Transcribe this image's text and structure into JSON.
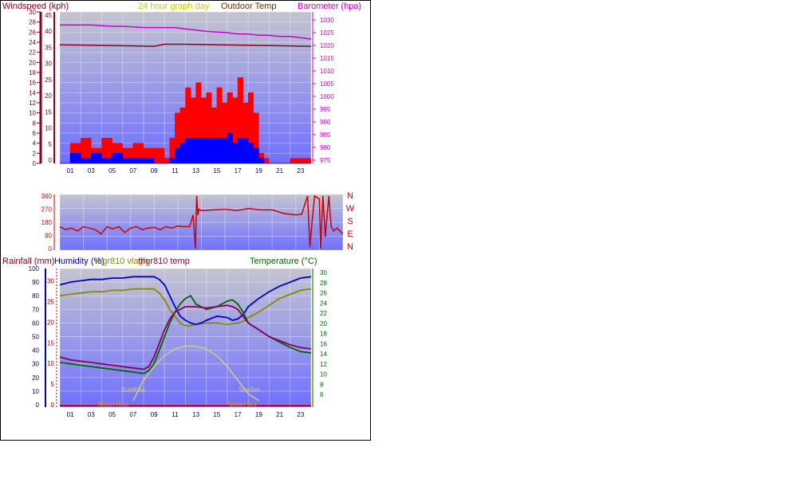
{
  "colors": {
    "windspeed": "#8b0020",
    "gust": "#ff0000",
    "avgwind": "#0000ff",
    "barometer": "#cc00cc",
    "winddir": "#cc0000",
    "header": "#cccc00",
    "rainfall": "#8b0020",
    "humidity": "#0000cc",
    "vlagh": "#888800",
    "temp": "#8b0057",
    "temperature": "#006600",
    "sun": "#cccc88",
    "moon": "#dd9900",
    "plotTop": "#c4c4d0",
    "plotBottom": "#7070ff"
  },
  "header": {
    "windspeed": "Windspeed (kph)",
    "title": "24 hour graph day",
    "outdoor_temp": "Outdoor Temp",
    "barometer": "Barometer (hpa)",
    "rainfall": "Rainfall (mm)",
    "humidity": "Humidity (%)",
    "vlagh": "thgr810 vlagh",
    "temp": "thgr810 temp",
    "temperature": "Temperature (°C)"
  },
  "compass": [
    "N",
    "W",
    "S",
    "E",
    "N"
  ],
  "chart_data": [
    {
      "type": "line",
      "title": "24 hour graph day",
      "xlabel": "",
      "x_ticks": [
        "01",
        "03",
        "05",
        "07",
        "09",
        "11",
        "13",
        "15",
        "17",
        "19",
        "21",
        "23"
      ],
      "left_axis_ticks": [
        "0",
        "2",
        "4",
        "6",
        "8",
        "10",
        "12",
        "14",
        "16",
        "18",
        "20",
        "22",
        "24",
        "26",
        "28",
        "30"
      ],
      "left_axis2_ticks": [
        "0",
        "5",
        "10",
        "15",
        "20",
        "25",
        "30",
        "35",
        "40",
        "45"
      ],
      "right_axis_ticks": [
        "975",
        "980",
        "985",
        "990",
        "995",
        "1000",
        "1005",
        "1010",
        "1015",
        "1020",
        "1025",
        "1030"
      ],
      "ylabel_left": "Windspeed (kph)",
      "ylabel_right": "Barometer (hpa)",
      "ylim_left": [
        0,
        30
      ],
      "ylim_right": [
        975,
        1032
      ],
      "series": [
        {
          "name": "Barometer (hpa)",
          "axis": "right",
          "x": [
            0,
            2,
            3,
            5,
            6,
            8,
            9,
            10,
            11,
            12,
            13,
            14,
            16,
            17,
            18,
            19,
            20,
            21,
            22,
            23,
            24
          ],
          "values": [
            1028,
            1028,
            1028,
            1027.5,
            1027.5,
            1027,
            1027,
            1027,
            1027,
            1026.5,
            1026,
            1025.5,
            1025,
            1024.5,
            1024.5,
            1024,
            1024,
            1023.5,
            1023.5,
            1023,
            1022.5
          ]
        },
        {
          "name": "Outdoor Temp",
          "axis": "left",
          "x": [
            0,
            3,
            6,
            9,
            10,
            12,
            15,
            18,
            21,
            24
          ],
          "values": [
            23.5,
            23.4,
            23.3,
            23.2,
            23.6,
            23.6,
            23.5,
            23.4,
            23.3,
            23.2
          ]
        },
        {
          "name": "Gust",
          "axis": "left",
          "x": [
            0,
            1,
            2,
            3,
            4,
            5,
            6,
            7,
            8,
            9,
            10,
            10.5,
            11,
            11.5,
            12,
            12.5,
            13,
            13.5,
            14,
            14.5,
            15,
            15.5,
            16,
            16.5,
            17,
            17.5,
            18,
            18.5,
            19,
            19.5,
            20,
            21,
            22,
            23,
            24
          ],
          "values": [
            0,
            4,
            5,
            3,
            5,
            4,
            3,
            4,
            3,
            3,
            1,
            5,
            10,
            11,
            15,
            13,
            16,
            13,
            14,
            11,
            15,
            12,
            14,
            13,
            17,
            12,
            14,
            10,
            2,
            1,
            0,
            0,
            1,
            1,
            0
          ]
        },
        {
          "name": "Average",
          "axis": "left",
          "x": [
            0,
            1,
            2,
            3,
            4,
            5,
            6,
            7,
            8,
            9,
            10,
            10.5,
            11,
            11.5,
            12,
            13,
            14,
            15,
            16,
            16.5,
            17,
            18,
            18.5,
            19,
            19.5,
            20,
            21,
            22,
            23,
            24
          ],
          "values": [
            0,
            2,
            1,
            2,
            1,
            2,
            1,
            1,
            1,
            0,
            0,
            1,
            3,
            4,
            5,
            5,
            5,
            5,
            6,
            4,
            5,
            4,
            3,
            1,
            0,
            0,
            0,
            0,
            0,
            0
          ]
        }
      ]
    },
    {
      "type": "line",
      "title": "",
      "left_axis_ticks": [
        "0",
        "90",
        "180",
        "270",
        "360"
      ],
      "ylim": [
        0,
        360
      ],
      "series": [
        {
          "name": "Wind direction",
          "x": [
            0,
            0.5,
            1,
            1.5,
            2,
            2.5,
            3,
            3.5,
            4,
            4.5,
            5,
            5.5,
            6,
            6.5,
            7,
            7.5,
            8,
            8.5,
            9,
            9.5,
            10,
            10.5,
            11,
            11.3,
            11.5,
            11.6,
            11.7,
            11.8,
            12,
            13,
            14,
            15,
            16,
            17,
            18,
            19,
            20,
            20.5,
            21,
            21.2,
            21.4,
            21.6,
            22,
            22.1,
            22.3,
            22.5,
            22.8,
            23,
            23.2,
            23.5,
            24
          ],
          "values": [
            150,
            130,
            140,
            120,
            150,
            140,
            130,
            100,
            150,
            135,
            150,
            110,
            140,
            150,
            130,
            140,
            145,
            130,
            150,
            140,
            155,
            150,
            150,
            230,
            0,
            360,
            230,
            270,
            260,
            265,
            270,
            260,
            275,
            265,
            265,
            240,
            230,
            235,
            360,
            10,
            200,
            360,
            340,
            0,
            360,
            80,
            360,
            150,
            120,
            140,
            100
          ]
        }
      ]
    },
    {
      "type": "line",
      "title": "",
      "left_axis_ticks": [
        "0",
        "10",
        "20",
        "30",
        "40",
        "50",
        "60",
        "70",
        "80",
        "90",
        "100"
      ],
      "left_axis2_ticks": [
        "0",
        "5",
        "10",
        "15",
        "20",
        "25",
        "30"
      ],
      "right_axis_ticks": [
        "6",
        "8",
        "10",
        "12",
        "14",
        "16",
        "18",
        "20",
        "22",
        "24",
        "26",
        "28",
        "30"
      ],
      "ylabel_left": "Rainfall (mm)",
      "ylabel_left2": "Humidity (%)",
      "ylabel_right": "Temperature (°C)",
      "ylim_left": [
        0,
        100
      ],
      "ylim_right": [
        4,
        30
      ],
      "annotations": [
        "SunRise",
        "SunSet",
        "Moon Rise",
        "Moon Set"
      ],
      "series": [
        {
          "name": "Humidity (%)",
          "axis": "left",
          "x": [
            0,
            1,
            2,
            3,
            4,
            5,
            6,
            7,
            8,
            9,
            9.5,
            10,
            10.5,
            11,
            11.5,
            12,
            12.5,
            13,
            13.5,
            14,
            15,
            16,
            16.5,
            17,
            17.5,
            18,
            19,
            20,
            21,
            22,
            23,
            24
          ],
          "values": [
            88,
            90,
            91,
            92,
            92,
            93,
            93,
            94,
            94,
            94,
            92,
            88,
            80,
            72,
            65,
            62,
            60,
            59,
            60,
            62,
            65,
            64,
            62,
            63,
            66,
            72,
            78,
            83,
            87,
            90,
            93,
            94
          ]
        },
        {
          "name": "thgr810 vlagh",
          "axis": "left",
          "x": [
            0,
            1,
            2,
            3,
            4,
            5,
            6,
            7,
            8,
            9,
            9.5,
            10,
            10.5,
            11,
            11.5,
            12,
            12.5,
            13,
            14,
            15,
            16,
            17,
            17.5,
            18,
            19,
            20,
            21,
            22,
            23,
            24
          ],
          "values": [
            80,
            81,
            82,
            83,
            83,
            84,
            84,
            85,
            85,
            85,
            82,
            77,
            70,
            65,
            60,
            58,
            58,
            59,
            60,
            60,
            59,
            60,
            61,
            64,
            68,
            73,
            78,
            81,
            84,
            85
          ]
        },
        {
          "name": "thgr810 temp",
          "axis": "left",
          "x": [
            0,
            1,
            2,
            3,
            4,
            5,
            6,
            7,
            8,
            8.5,
            9,
            9.5,
            10,
            10.5,
            11,
            11.5,
            12,
            13,
            14,
            15,
            16,
            16.5,
            17,
            17.5,
            18,
            19,
            20,
            21,
            22,
            23,
            24
          ],
          "values": [
            35,
            33,
            32,
            31,
            30,
            29,
            28,
            27,
            26,
            28,
            35,
            45,
            55,
            63,
            68,
            70,
            72,
            72,
            71,
            72,
            73,
            72,
            70,
            65,
            60,
            55,
            50,
            47,
            44,
            42,
            41
          ]
        },
        {
          "name": "Temperature (°C)",
          "axis": "left",
          "x": [
            0,
            1,
            2,
            3,
            4,
            5,
            6,
            7,
            8,
            8.5,
            9,
            9.5,
            10,
            10.5,
            11,
            11.5,
            12,
            12.5,
            13,
            13.5,
            14,
            15,
            16,
            16.5,
            17,
            17.5,
            18,
            19,
            20,
            21,
            22,
            23,
            24
          ],
          "values": [
            31,
            30,
            29,
            28,
            27,
            26,
            25,
            24,
            23,
            25,
            30,
            40,
            50,
            60,
            68,
            74,
            78,
            80,
            74,
            72,
            70,
            72,
            76,
            77,
            74,
            68,
            60,
            55,
            50,
            46,
            42,
            39,
            38
          ]
        },
        {
          "name": "Sun",
          "axis": "left",
          "x": [
            7,
            8,
            9,
            10,
            11,
            12,
            13,
            14,
            15,
            16,
            17,
            18,
            19
          ],
          "values": [
            3,
            18,
            28,
            36,
            41,
            43,
            43,
            41,
            36,
            28,
            18,
            8,
            3
          ]
        }
      ]
    }
  ]
}
